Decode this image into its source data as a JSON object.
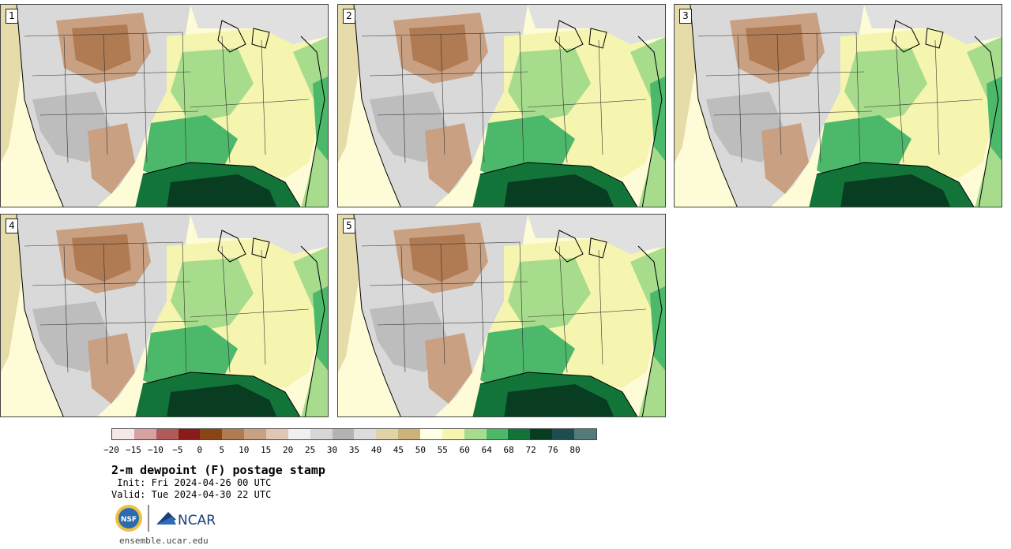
{
  "panels": [
    {
      "label": "1"
    },
    {
      "label": "2"
    },
    {
      "label": "3"
    },
    {
      "label": "4"
    },
    {
      "label": "5"
    }
  ],
  "colorbar": {
    "colors": [
      "#f5e8e8",
      "#d6a1a1",
      "#b05a5a",
      "#8b1a1a",
      "#8b4513",
      "#b07a52",
      "#c9a082",
      "#e0c6b4",
      "#f0f0f0",
      "#d6d6d6",
      "#b3b3b3",
      "#dcdcdc",
      "#e0d3a8",
      "#cdb37a",
      "#ffffe6",
      "#f5f5b0",
      "#a6dc8c",
      "#4cb86a",
      "#13743a",
      "#083d22",
      "#1e4d50",
      "#557a7a"
    ],
    "tick_labels": [
      "−20",
      "−15",
      "−10",
      "−5",
      "0",
      "5",
      "10",
      "15",
      "20",
      "25",
      "30",
      "35",
      "40",
      "45",
      "50",
      "55",
      "60",
      "64",
      "68",
      "72",
      "76",
      "80"
    ]
  },
  "title": "2-m dewpoint (F) postage stamp",
  "init_text": " Init: Fri 2024-04-26 00 UTC",
  "valid_text": "Valid: Tue 2024-04-30 22 UTC",
  "logos": {
    "nsf": "NSF",
    "ncar": "NCAR"
  },
  "url": "ensemble.ucar.edu"
}
